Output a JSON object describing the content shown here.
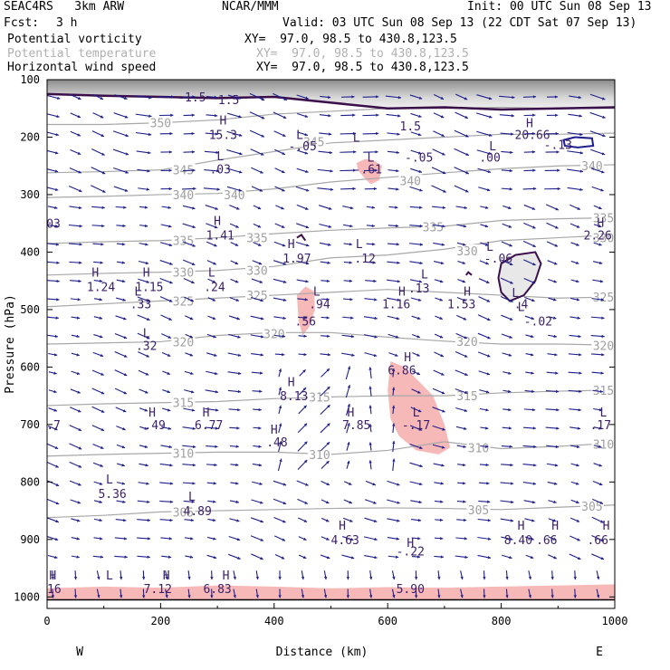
{
  "header": {
    "model": "SEAC4RS   3km ARW",
    "org": "NCAR/MMM",
    "init": "Init: 00 UTC Sun 08 Sep 13",
    "fcst_label": "Fcst:",
    "fcst_value": "3 h",
    "valid": "Valid: 03 UTC Sun 08 Sep 13 (22 CDT Sat 07 Sep 13)",
    "fields": [
      {
        "name": "Potential vorticity",
        "xy": "XY=  97.0, 98.5 to 430.8,123.5"
      },
      {
        "name": "Potential temperature",
        "xy": "XY=  97.0, 98.5 to 430.8,123.5"
      },
      {
        "name": "Horizontal wind speed",
        "xy": "XY=  97.0, 98.5 to 430.8,123.5"
      }
    ]
  },
  "chart_data": {
    "type": "cross-section",
    "xlabel": "Distance (km)",
    "ylabel": "Pressure (hPa)",
    "xlim": [
      0,
      1000
    ],
    "ylim": [
      1020,
      100
    ],
    "xticks": [
      0,
      200,
      400,
      600,
      800,
      1000
    ],
    "yticks": [
      100,
      200,
      300,
      400,
      500,
      600,
      700,
      800,
      900,
      1000
    ],
    "left_end": "W",
    "right_end": "E",
    "theta_contours": [
      {
        "label": "305",
        "points": [
          [
            0,
            862
          ],
          [
            100,
            858
          ],
          [
            200,
            852
          ],
          [
            300,
            850
          ],
          [
            400,
            848
          ],
          [
            500,
            846
          ],
          [
            600,
            845
          ],
          [
            700,
            846
          ],
          [
            800,
            848
          ],
          [
            900,
            844
          ],
          [
            1000,
            840
          ]
        ],
        "label_at": [
          [
            240,
            852
          ],
          [
            760,
            848
          ],
          [
            960,
            842
          ]
        ]
      },
      {
        "label": "310",
        "points": [
          [
            0,
            755
          ],
          [
            100,
            752
          ],
          [
            200,
            750
          ],
          [
            300,
            748
          ],
          [
            400,
            748
          ],
          [
            500,
            752
          ],
          [
            600,
            745
          ],
          [
            700,
            730
          ],
          [
            800,
            742
          ],
          [
            900,
            738
          ],
          [
            1000,
            732
          ]
        ],
        "label_at": [
          [
            240,
            750
          ],
          [
            480,
            752
          ],
          [
            760,
            740
          ],
          [
            980,
            734
          ]
        ]
      },
      {
        "label": "315",
        "points": [
          [
            0,
            667
          ],
          [
            100,
            664
          ],
          [
            200,
            662
          ],
          [
            300,
            660
          ],
          [
            400,
            655
          ],
          [
            500,
            652
          ],
          [
            600,
            650
          ],
          [
            700,
            650
          ],
          [
            800,
            645
          ],
          [
            900,
            642
          ],
          [
            1000,
            640
          ]
        ],
        "label_at": [
          [
            240,
            662
          ],
          [
            480,
            652
          ],
          [
            740,
            650
          ],
          [
            980,
            640
          ]
        ]
      },
      {
        "label": "320",
        "points": [
          [
            0,
            560
          ],
          [
            100,
            558
          ],
          [
            200,
            556
          ],
          [
            300,
            545
          ],
          [
            400,
            540
          ],
          [
            500,
            540
          ],
          [
            600,
            548
          ],
          [
            700,
            555
          ],
          [
            800,
            560
          ],
          [
            900,
            560
          ],
          [
            1000,
            562
          ]
        ],
        "label_at": [
          [
            240,
            556
          ],
          [
            400,
            542
          ],
          [
            740,
            555
          ],
          [
            980,
            562
          ]
        ]
      },
      {
        "label": "325",
        "points": [
          [
            0,
            495
          ],
          [
            100,
            490
          ],
          [
            200,
            485
          ],
          [
            300,
            480
          ],
          [
            400,
            475
          ],
          [
            500,
            470
          ],
          [
            600,
            465
          ],
          [
            700,
            470
          ],
          [
            800,
            475
          ],
          [
            900,
            480
          ],
          [
            1000,
            478
          ]
        ],
        "label_at": [
          [
            240,
            485
          ],
          [
            370,
            475
          ],
          [
            980,
            478
          ]
        ]
      },
      {
        "label": "330",
        "points": [
          [
            0,
            440
          ],
          [
            100,
            437
          ],
          [
            200,
            435
          ],
          [
            300,
            432
          ],
          [
            400,
            425
          ],
          [
            500,
            410
          ],
          [
            600,
            405
          ],
          [
            700,
            395
          ],
          [
            800,
            380
          ],
          [
            900,
            375
          ],
          [
            1000,
            370
          ]
        ],
        "label_at": [
          [
            240,
            435
          ],
          [
            370,
            432
          ],
          [
            740,
            398
          ],
          [
            980,
            375
          ]
        ]
      },
      {
        "label": "335",
        "points": [
          [
            0,
            385
          ],
          [
            100,
            382
          ],
          [
            200,
            380
          ],
          [
            300,
            375
          ],
          [
            400,
            368
          ],
          [
            500,
            362
          ],
          [
            600,
            358
          ],
          [
            700,
            355
          ],
          [
            800,
            345
          ],
          [
            900,
            342
          ],
          [
            1000,
            340
          ]
        ],
        "label_at": [
          [
            240,
            380
          ],
          [
            370,
            375
          ],
          [
            680,
            356
          ],
          [
            980,
            340
          ]
        ]
      },
      {
        "label": "340",
        "points": [
          [
            0,
            305
          ],
          [
            100,
            303
          ],
          [
            200,
            300
          ],
          [
            300,
            298
          ],
          [
            400,
            290
          ],
          [
            500,
            278
          ],
          [
            600,
            270
          ],
          [
            700,
            262
          ],
          [
            800,
            255
          ],
          [
            900,
            250
          ],
          [
            1000,
            248
          ]
        ],
        "label_at": [
          [
            240,
            300
          ],
          [
            330,
            300
          ],
          [
            640,
            276
          ],
          [
            960,
            250
          ]
        ]
      },
      {
        "label": "345",
        "points": [
          [
            0,
            262
          ],
          [
            100,
            260
          ],
          [
            200,
            257
          ],
          [
            300,
            240
          ],
          [
            400,
            225
          ],
          [
            500,
            210
          ],
          [
            600,
            205
          ],
          [
            700,
            200
          ],
          [
            800,
            195
          ],
          [
            900,
            195
          ],
          [
            1000,
            193
          ]
        ],
        "label_at": [
          [
            240,
            257
          ],
          [
            470,
            208
          ]
        ]
      },
      {
        "label": "350",
        "points": [
          [
            0,
            178
          ],
          [
            100,
            178
          ],
          [
            200,
            175
          ],
          [
            300,
            170
          ],
          [
            400,
            160
          ],
          [
            500,
            155
          ],
          [
            600,
            150
          ],
          [
            700,
            150
          ],
          [
            800,
            148
          ],
          [
            900,
            150
          ],
          [
            1000,
            150
          ]
        ],
        "label_at": [
          [
            200,
            175
          ]
        ]
      }
    ],
    "pv_areas": [
      {
        "label": "1.5",
        "note": "tropopause"
      }
    ],
    "pv_labels": [
      {
        "text": "-1.5",
        "x": 255,
        "y": 130
      },
      {
        "text": "1.5",
        "x": 320,
        "y": 135
      },
      {
        "text": "1.5",
        "x": 640,
        "y": 180
      },
      {
        "text": "15.3",
        "x": 310,
        "y": 195
      },
      {
        "text": "20.66",
        "x": 855,
        "y": 195
      },
      {
        "text": "-.13",
        "x": 900,
        "y": 213
      },
      {
        "text": "-.05",
        "x": 450,
        "y": 215
      },
      {
        "text": "-.05",
        "x": 655,
        "y": 235
      },
      {
        "text": ".00",
        "x": 780,
        "y": 235
      },
      {
        "text": ".03",
        "x": 305,
        "y": 255
      },
      {
        "text": "-.61",
        "x": 565,
        "y": 255
      },
      {
        "text": ".03",
        "x": 5,
        "y": 350
      },
      {
        "text": "1.41",
        "x": 305,
        "y": 370
      },
      {
        "text": "2.26",
        "x": 970,
        "y": 370
      },
      {
        "text": "1.97",
        "x": 440,
        "y": 410
      },
      {
        "text": ".12",
        "x": 560,
        "y": 410
      },
      {
        "text": "-.06",
        "x": 795,
        "y": 410
      },
      {
        "text": "1.24",
        "x": 95,
        "y": 460
      },
      {
        "text": "1.15",
        "x": 180,
        "y": 460
      },
      {
        "text": ".24",
        "x": 295,
        "y": 460
      },
      {
        "text": ".13",
        "x": 655,
        "y": 462
      },
      {
        "text": ".33",
        "x": 165,
        "y": 490
      },
      {
        "text": ".94",
        "x": 480,
        "y": 490
      },
      {
        "text": "1.16",
        "x": 615,
        "y": 490
      },
      {
        "text": "1.53",
        "x": 730,
        "y": 490
      },
      {
        "text": ".4",
        "x": 835,
        "y": 490
      },
      {
        "text": "-.02",
        "x": 865,
        "y": 520
      },
      {
        "text": ".56",
        "x": 455,
        "y": 520
      },
      {
        "text": ".32",
        "x": 175,
        "y": 562
      },
      {
        "text": "6.86",
        "x": 625,
        "y": 605
      },
      {
        "text": "8.13",
        "x": 435,
        "y": 650
      },
      {
        "text": "7.7",
        "x": 5,
        "y": 700
      },
      {
        "text": ".49",
        "x": 190,
        "y": 700
      },
      {
        "text": "6.77",
        "x": 285,
        "y": 700
      },
      {
        "text": "7.85",
        "x": 545,
        "y": 700
      },
      {
        "text": "-.17",
        "x": 650,
        "y": 700
      },
      {
        "text": ".17",
        "x": 975,
        "y": 700
      },
      {
        "text": ".48",
        "x": 405,
        "y": 730
      },
      {
        "text": "5.36",
        "x": 115,
        "y": 820
      },
      {
        "text": "4.89",
        "x": 265,
        "y": 850
      },
      {
        "text": "8.40",
        "x": 830,
        "y": 900
      },
      {
        "text": ".66",
        "x": 880,
        "y": 900
      },
      {
        "text": ".66",
        "x": 970,
        "y": 900
      },
      {
        "text": "4.63",
        "x": 525,
        "y": 900
      },
      {
        "text": "-.22",
        "x": 640,
        "y": 920
      },
      {
        "text": "7.16",
        "x": 0,
        "y": 985
      },
      {
        "text": "7.12",
        "x": 195,
        "y": 985
      },
      {
        "text": "6.83",
        "x": 300,
        "y": 985
      },
      {
        "text": "5.90",
        "x": 640,
        "y": 985
      }
    ],
    "extrema": [
      {
        "type": "H",
        "x": 310,
        "y": 170
      },
      {
        "type": "H",
        "x": 850,
        "y": 175
      },
      {
        "type": "L",
        "x": 445,
        "y": 195
      },
      {
        "type": "L",
        "x": 545,
        "y": 200
      },
      {
        "type": "L",
        "x": 570,
        "y": 235
      },
      {
        "type": "L",
        "x": 785,
        "y": 215
      },
      {
        "type": "L",
        "x": 305,
        "y": 232
      },
      {
        "type": "H",
        "x": 300,
        "y": 345
      },
      {
        "type": "H",
        "x": 975,
        "y": 348
      },
      {
        "type": "H",
        "x": 430,
        "y": 385
      },
      {
        "type": "L",
        "x": 550,
        "y": 385
      },
      {
        "type": "L",
        "x": 780,
        "y": 390
      },
      {
        "type": "H",
        "x": 85,
        "y": 435
      },
      {
        "type": "H",
        "x": 175,
        "y": 435
      },
      {
        "type": "L",
        "x": 290,
        "y": 435
      },
      {
        "type": "L",
        "x": 665,
        "y": 438
      },
      {
        "type": "L",
        "x": 160,
        "y": 468
      },
      {
        "type": "H",
        "x": 625,
        "y": 468
      },
      {
        "type": "H",
        "x": 740,
        "y": 468
      },
      {
        "type": "L",
        "x": 475,
        "y": 468
      },
      {
        "type": "L",
        "x": 825,
        "y": 470
      },
      {
        "type": "L",
        "x": 835,
        "y": 495
      },
      {
        "type": "L",
        "x": 175,
        "y": 540
      },
      {
        "type": "H",
        "x": 635,
        "y": 582
      },
      {
        "type": "H",
        "x": 430,
        "y": 625
      },
      {
        "type": "H",
        "x": 185,
        "y": 678
      },
      {
        "type": "H",
        "x": 280,
        "y": 678
      },
      {
        "type": "H",
        "x": 535,
        "y": 678
      },
      {
        "type": "L",
        "x": 650,
        "y": 678
      },
      {
        "type": "L",
        "x": 980,
        "y": 678
      },
      {
        "type": "H",
        "x": 400,
        "y": 708
      },
      {
        "type": "L",
        "x": 110,
        "y": 795
      },
      {
        "type": "L",
        "x": 255,
        "y": 825
      },
      {
        "type": "H",
        "x": 520,
        "y": 875
      },
      {
        "type": "H",
        "x": 835,
        "y": 875
      },
      {
        "type": "H",
        "x": 895,
        "y": 875
      },
      {
        "type": "H",
        "x": 985,
        "y": 875
      },
      {
        "type": "H",
        "x": 640,
        "y": 905
      },
      {
        "type": "H",
        "x": 10,
        "y": 962
      },
      {
        "type": "L",
        "x": 110,
        "y": 962
      },
      {
        "type": "H",
        "x": 210,
        "y": 962
      },
      {
        "type": "H",
        "x": 315,
        "y": 962
      }
    ]
  }
}
